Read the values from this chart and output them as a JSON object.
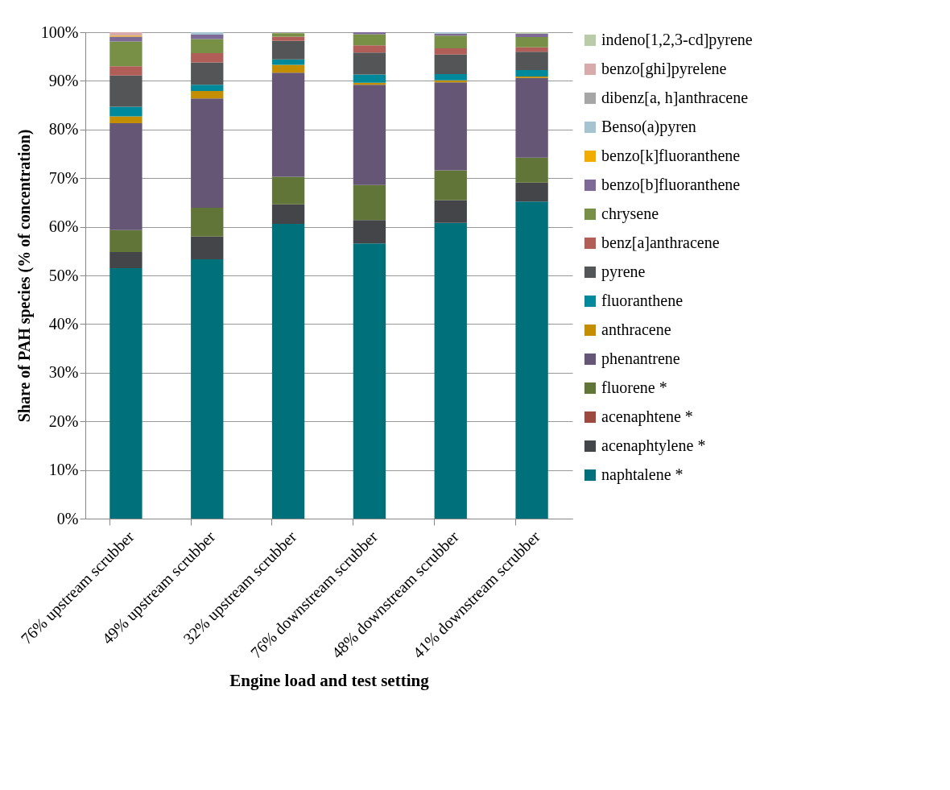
{
  "chart_data": {
    "type": "bar",
    "stacked": true,
    "xlabel": "Engine load and test setting",
    "ylabel": "Share of PAH species (% of concentration)",
    "categories": [
      "76% upstream scrubber",
      "49% upstream scrubber",
      "32% upstream scrubber",
      "76% downstream scrubber",
      "48% downstream scrubber",
      "41% downstream scrubber"
    ],
    "ylim": [
      0,
      100
    ],
    "yticks": [
      {
        "value": 0,
        "label": "0%"
      },
      {
        "value": 10,
        "label": "10%"
      },
      {
        "value": 20,
        "label": "20%"
      },
      {
        "value": 30,
        "label": "30%"
      },
      {
        "value": 40,
        "label": "40%"
      },
      {
        "value": 50,
        "label": "50%"
      },
      {
        "value": 60,
        "label": "60%"
      },
      {
        "value": 70,
        "label": "70%"
      },
      {
        "value": 80,
        "label": "80%"
      },
      {
        "value": 90,
        "label": "90%"
      },
      {
        "value": 100,
        "label": "100%"
      }
    ],
    "grid": "y",
    "legend": "right",
    "series": [
      {
        "name": "naphtalene *",
        "color": "#00707a",
        "values": [
          51.5,
          53.3,
          60.6,
          56.6,
          60.8,
          65.2
        ]
      },
      {
        "name": "acenaphtylene *",
        "color": "#434549",
        "values": [
          3.3,
          4.7,
          4.0,
          4.8,
          4.7,
          3.9
        ]
      },
      {
        "name": "acenaphtene *",
        "color": "#9c4a40",
        "values": [
          0,
          0,
          0,
          0,
          0,
          0
        ]
      },
      {
        "name": "fluorene *",
        "color": "#607537",
        "values": [
          4.5,
          5.9,
          5.7,
          7.2,
          6.1,
          5.1
        ]
      },
      {
        "name": "phenantrene",
        "color": "#655675",
        "values": [
          22.0,
          22.5,
          21.4,
          20.6,
          18.1,
          16.4
        ]
      },
      {
        "name": "anthracene",
        "color": "#c38e00",
        "values": [
          1.4,
          1.5,
          1.6,
          0.4,
          0.4,
          0.3
        ]
      },
      {
        "name": "fluoranthene",
        "color": "#00899a",
        "values": [
          2.0,
          1.3,
          1.1,
          1.7,
          1.3,
          1.3
        ]
      },
      {
        "name": "pyrene",
        "color": "#535557",
        "values": [
          6.4,
          4.6,
          3.8,
          4.5,
          4.0,
          3.8
        ]
      },
      {
        "name": "benz[a]anthracene",
        "color": "#b05e57",
        "values": [
          1.9,
          1.9,
          0.9,
          1.5,
          1.3,
          0.9
        ]
      },
      {
        "name": "chrysene",
        "color": "#789046",
        "values": [
          5.1,
          2.9,
          0.7,
          2.3,
          2.6,
          2.1
        ]
      },
      {
        "name": "benzo[b]fluoranthene",
        "color": "#7d6a96",
        "values": [
          1.0,
          0.9,
          0,
          0.4,
          0.4,
          0.7
        ]
      },
      {
        "name": "benzo[k]fluoranthene",
        "color": "#f0ac00",
        "values": [
          0.2,
          0,
          0,
          0,
          0,
          0
        ]
      },
      {
        "name": "Benso(a)pyren",
        "color": "#a5c4cf",
        "values": [
          0,
          0.5,
          0,
          0,
          0.3,
          0
        ]
      },
      {
        "name": "dibenz[a, h]anthracene",
        "color": "#a6a6a6",
        "values": [
          0,
          0,
          0,
          0,
          0,
          0
        ]
      },
      {
        "name": "benzo[ghi]pyrelene",
        "color": "#d7abab",
        "values": [
          0.7,
          0,
          null,
          0,
          0,
          0
        ]
      },
      {
        "name": "indeno[1,2,3-cd]pyrene",
        "color": "#bacbaa",
        "values": [
          null,
          null,
          0,
          0,
          0,
          0.3
        ]
      }
    ]
  }
}
